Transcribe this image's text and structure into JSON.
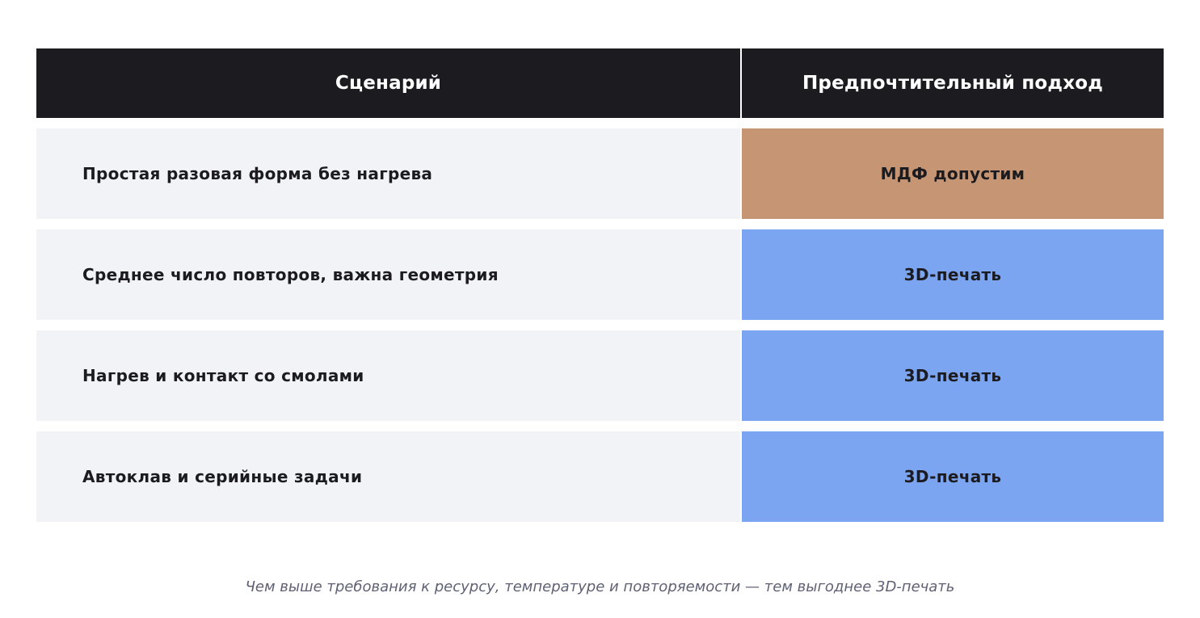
{
  "table": {
    "headers": {
      "scenario": "Сценарий",
      "approach": "Предпочтительный подход"
    },
    "rows": [
      {
        "scenario": "Простая разовая форма без нагрева",
        "approach": "МДФ допустим",
        "approach_color": "#c69674"
      },
      {
        "scenario": "Среднее число повторов, важна геометрия",
        "approach": "3D-печать",
        "approach_color": "#7ba5f0"
      },
      {
        "scenario": "Нагрев и контакт со смолами",
        "approach": "3D-печать",
        "approach_color": "#7ba5f0"
      },
      {
        "scenario": "Автоклав и серийные задачи",
        "approach": "3D-печать",
        "approach_color": "#7ba5f0"
      }
    ]
  },
  "caption": "Чем выше требования к ресурсу, температуре и повторяемости — тем выгоднее 3D-печать",
  "colors": {
    "header_bg": "#1c1b20",
    "scenario_bg": "#f2f3f7",
    "mdf": "#c69674",
    "print3d": "#7ba5f0"
  }
}
